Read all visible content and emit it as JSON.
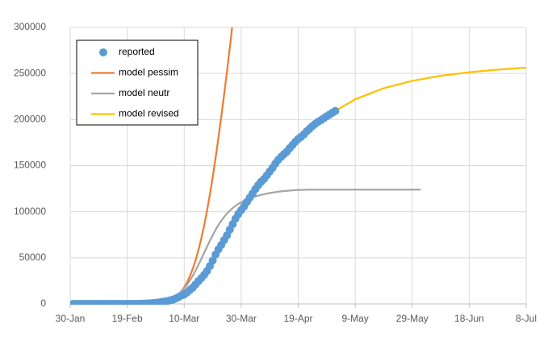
{
  "chart_data": {
    "type": "line",
    "x": [
      "30-Jan",
      null,
      null,
      null,
      null,
      null,
      null,
      null,
      null,
      null,
      null,
      null,
      null,
      null,
      null,
      null,
      null,
      null,
      null,
      null,
      "19-Feb",
      null,
      null,
      null,
      null,
      null,
      null,
      null,
      null,
      null,
      null,
      null,
      null,
      null,
      null,
      null,
      null,
      null,
      null,
      null,
      "10-Mar",
      null,
      null,
      null,
      null,
      null,
      null,
      null,
      null,
      null,
      null,
      null,
      null,
      null,
      null,
      null,
      null,
      null,
      null,
      null,
      "30-Mar",
      null,
      null,
      null,
      null,
      null,
      null,
      null,
      null,
      null,
      null,
      null,
      null,
      null,
      null,
      null,
      null,
      null,
      null,
      null,
      "19-Apr",
      null,
      null,
      null,
      null,
      null,
      null,
      null,
      null,
      null,
      null,
      null,
      null,
      null,
      null,
      null,
      null,
      null,
      null,
      null,
      "9-May",
      null,
      null,
      null,
      null,
      null,
      null,
      null,
      null,
      null,
      null,
      null,
      null,
      null,
      null,
      null,
      null,
      null,
      null,
      null,
      "29-May",
      null,
      null,
      null,
      null,
      null,
      null,
      null,
      null,
      null,
      null,
      null,
      null,
      null,
      null,
      null,
      null,
      null,
      null,
      null,
      "18-Jun",
      null,
      null,
      null,
      null,
      null,
      null,
      null,
      null,
      null,
      null,
      null,
      null,
      null,
      null,
      null,
      null,
      null,
      null,
      null,
      "8-Jul"
    ],
    "series": [
      {
        "name": "reported",
        "color": "#5b9bd5",
        "style": "markers",
        "values": [
          null,
          2,
          2,
          2,
          3,
          3,
          3,
          3,
          3,
          3,
          3,
          3,
          3,
          3,
          3,
          3,
          3,
          3,
          3,
          3,
          3,
          3,
          20,
          79,
          157,
          229,
          322,
          400,
          650,
          888,
          1128,
          1694,
          2036,
          2502,
          3089,
          3858,
          4636,
          5883,
          7375,
          9172,
          10149,
          12462,
          15113,
          17660,
          21157,
          24747,
          27980,
          31506,
          35713,
          41035,
          47021,
          53578,
          59138,
          63927,
          69176,
          74386,
          80589,
          86498,
          92472,
          97689,
          101739,
          105792,
          110574,
          115242,
          119827,
          124632,
          128948,
          132547,
          135586,
          139422,
          143626,
          147577,
          152271,
          156363,
          159516,
          162488,
          165155,
          168941,
          172434,
          175925,
          178972,
          181228,
          183957,
          187327,
          189973,
          192994,
          195351,
          197675,
          199414,
          201505,
          203591,
          205463,
          207428,
          209328,
          null,
          null,
          null,
          null,
          null,
          null,
          null,
          null,
          null,
          null,
          null,
          null,
          null,
          null,
          null,
          null,
          null,
          null,
          null,
          null,
          null,
          null,
          null,
          null,
          null,
          null,
          null,
          null,
          null,
          null,
          null,
          null,
          null,
          null,
          null,
          null,
          null,
          null,
          null,
          null,
          null,
          null,
          null,
          null,
          null,
          null,
          null,
          null,
          null,
          null,
          null,
          null,
          null,
          null,
          null,
          null,
          null,
          null,
          null,
          null,
          null,
          null,
          null,
          null,
          null,
          null,
          null
        ]
      },
      {
        "name": "model pessim",
        "color": "#ed7d31",
        "style": "line",
        "values": [
          null,
          null,
          null,
          null,
          null,
          null,
          null,
          null,
          null,
          null,
          null,
          null,
          null,
          null,
          null,
          null,
          null,
          null,
          null,
          null,
          null,
          null,
          null,
          null,
          null,
          null,
          null,
          null,
          null,
          null,
          500,
          800,
          1200,
          1800,
          2700,
          3900,
          5500,
          7600,
          10300,
          13700,
          18000,
          23500,
          30000,
          38000,
          47500,
          58500,
          71000,
          85000,
          101000,
          118500,
          137500,
          158000,
          180000,
          203000,
          227000,
          252000,
          278000,
          305000,
          null,
          null,
          null,
          null,
          null,
          null,
          null,
          null,
          null,
          null,
          null,
          null,
          null,
          null,
          null,
          null,
          null,
          null,
          null,
          null,
          null,
          null,
          null,
          null,
          null,
          null,
          null,
          null,
          null,
          null,
          null,
          null,
          null,
          null,
          null,
          null,
          null,
          null,
          null,
          null,
          null,
          null,
          null,
          null,
          null,
          null,
          null,
          null,
          null,
          null,
          null,
          null,
          null,
          null,
          null,
          null,
          null,
          null,
          null,
          null,
          null,
          null,
          null,
          null,
          null,
          null,
          null,
          null,
          null,
          null,
          null,
          null,
          null,
          null,
          null,
          null,
          null,
          null,
          null,
          null,
          null,
          null,
          null,
          null,
          null,
          null,
          null,
          null,
          null,
          null,
          null,
          null,
          null,
          null,
          null,
          null,
          null,
          null,
          null,
          null,
          null,
          null,
          null
        ]
      },
      {
        "name": "model neutr",
        "color": "#a5a5a5",
        "style": "line",
        "values": [
          null,
          null,
          null,
          null,
          null,
          null,
          null,
          null,
          null,
          null,
          null,
          null,
          null,
          null,
          null,
          null,
          null,
          null,
          null,
          null,
          null,
          null,
          null,
          null,
          null,
          null,
          null,
          null,
          null,
          null,
          1000,
          1400,
          1900,
          2600,
          3500,
          4700,
          6200,
          8100,
          10500,
          13400,
          16800,
          20800,
          25400,
          30600,
          36300,
          42400,
          48800,
          55400,
          62000,
          68500,
          74600,
          80300,
          85500,
          90200,
          94300,
          98000,
          101200,
          104000,
          106400,
          108500,
          110300,
          111900,
          113300,
          114500,
          115600,
          116600,
          117500,
          118300,
          119000,
          119700,
          120300,
          120800,
          121300,
          121700,
          122100,
          122400,
          122700,
          123000,
          123200,
          123400,
          123600,
          123700,
          123800,
          123900,
          124000,
          124000,
          124000,
          124000,
          124000,
          124000,
          124000,
          124000,
          124000,
          124000,
          124000,
          124000,
          124000,
          124000,
          124000,
          124000,
          124000,
          124000,
          124000,
          124000,
          124000,
          124000,
          124000,
          124000,
          124000,
          124000,
          124000,
          124000,
          124000,
          124000,
          124000,
          124000,
          124000,
          124000,
          124000,
          124000,
          124000,
          124000,
          124000,
          124000,
          null,
          null,
          null,
          null,
          null,
          null,
          null,
          null,
          null,
          null,
          null,
          null,
          null,
          null,
          null,
          null,
          null,
          null,
          null,
          null,
          null,
          null,
          null,
          null,
          null,
          null,
          null,
          null,
          null,
          null,
          null,
          null,
          null,
          null,
          null,
          null,
          null
        ]
      },
      {
        "name": "model revised",
        "color": "#ffc000",
        "style": "line",
        "values": [
          null,
          null,
          null,
          null,
          null,
          null,
          null,
          null,
          null,
          null,
          null,
          null,
          null,
          null,
          null,
          null,
          null,
          null,
          null,
          null,
          null,
          null,
          null,
          null,
          null,
          null,
          null,
          null,
          null,
          null,
          null,
          null,
          null,
          null,
          null,
          null,
          null,
          null,
          null,
          null,
          null,
          null,
          null,
          null,
          null,
          null,
          null,
          null,
          null,
          null,
          null,
          null,
          null,
          null,
          null,
          null,
          null,
          null,
          null,
          null,
          100000,
          104500,
          109000,
          113500,
          118000,
          122500,
          127000,
          131500,
          136000,
          140500,
          145000,
          148300,
          151600,
          154900,
          158200,
          161500,
          164800,
          168100,
          171400,
          174700,
          178000,
          180600,
          183200,
          185800,
          188400,
          191000,
          193600,
          196200,
          198800,
          201400,
          204000,
          205800,
          207600,
          209400,
          211200,
          213000,
          214800,
          216600,
          218400,
          220200,
          222000,
          223200,
          224400,
          225600,
          226800,
          228000,
          229200,
          230400,
          231600,
          232800,
          234000,
          234800,
          235600,
          236400,
          237200,
          238000,
          238800,
          239600,
          240400,
          241200,
          242000,
          242550,
          243100,
          243650,
          244200,
          244750,
          245300,
          245850,
          246400,
          246950,
          247500,
          247880,
          248260,
          248640,
          249020,
          249400,
          249780,
          250160,
          250540,
          250920,
          251300,
          251590,
          251880,
          252170,
          252460,
          252750,
          253040,
          253330,
          253620,
          253910,
          254200,
          254410,
          254620,
          254830,
          255040,
          255250,
          255460,
          255670,
          255880,
          256090,
          256300
        ]
      }
    ],
    "ylim": [
      0,
      300000
    ],
    "yticks": [
      0,
      50000,
      100000,
      150000,
      200000,
      250000,
      300000
    ],
    "grid": true,
    "legend": "upper left"
  }
}
